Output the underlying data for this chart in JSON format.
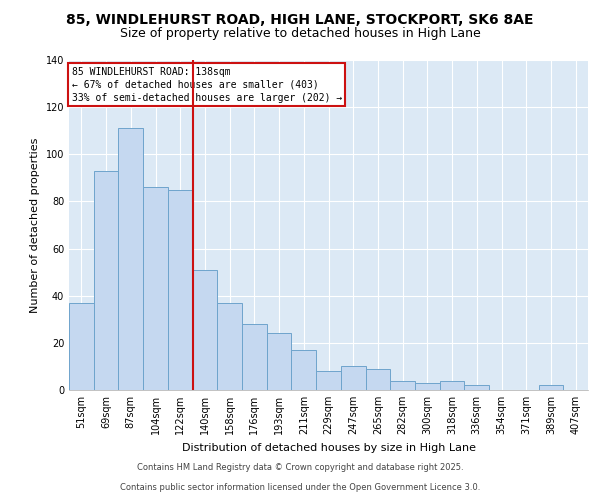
{
  "title1": "85, WINDLEHURST ROAD, HIGH LANE, STOCKPORT, SK6 8AE",
  "title2": "Size of property relative to detached houses in High Lane",
  "xlabel": "Distribution of detached houses by size in High Lane",
  "ylabel": "Number of detached properties",
  "categories": [
    "51sqm",
    "69sqm",
    "87sqm",
    "104sqm",
    "122sqm",
    "140sqm",
    "158sqm",
    "176sqm",
    "193sqm",
    "211sqm",
    "229sqm",
    "247sqm",
    "265sqm",
    "282sqm",
    "300sqm",
    "318sqm",
    "336sqm",
    "354sqm",
    "371sqm",
    "389sqm",
    "407sqm"
  ],
  "values": [
    37,
    93,
    111,
    86,
    85,
    51,
    37,
    28,
    24,
    17,
    8,
    10,
    9,
    4,
    3,
    4,
    2,
    0,
    0,
    2,
    0
  ],
  "bar_color": "#c5d8f0",
  "bar_edge_color": "#6ea4cc",
  "vline_color": "#cc1111",
  "annotation_title": "85 WINDLEHURST ROAD: 138sqm",
  "annotation_line1": "← 67% of detached houses are smaller (403)",
  "annotation_line2": "33% of semi-detached houses are larger (202) →",
  "annotation_box_color": "#ffffff",
  "annotation_box_edge": "#cc1111",
  "ylim": [
    0,
    140
  ],
  "yticks": [
    0,
    20,
    40,
    60,
    80,
    100,
    120,
    140
  ],
  "footer1": "Contains HM Land Registry data © Crown copyright and database right 2025.",
  "footer2": "Contains public sector information licensed under the Open Government Licence 3.0.",
  "plot_bg_color": "#dce9f5",
  "fig_bg": "#ffffff",
  "grid_color": "#ffffff",
  "title1_fontsize": 10,
  "title2_fontsize": 9,
  "xlabel_fontsize": 8,
  "ylabel_fontsize": 8,
  "tick_fontsize": 7,
  "annotation_fontsize": 7,
  "footer_fontsize": 6
}
